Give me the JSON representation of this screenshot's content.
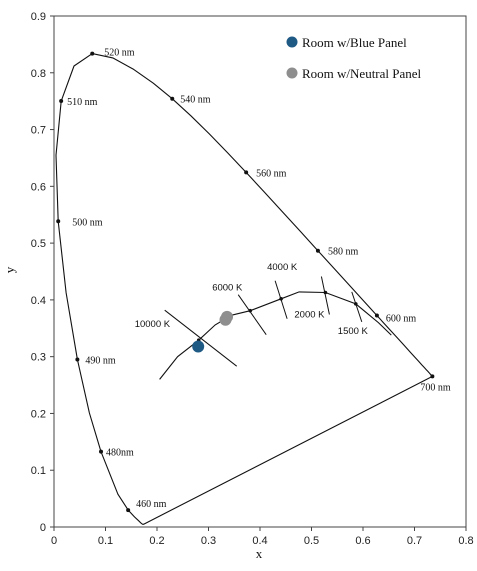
{
  "chart_data": {
    "type": "scatter",
    "xlabel": "x",
    "ylabel": "y",
    "xlim": [
      0,
      0.8
    ],
    "ylim": [
      0,
      0.9
    ],
    "x_ticks": [
      "0",
      "0.1",
      "0.2",
      "0.3",
      "0.4",
      "0.5",
      "0.6",
      "0.7",
      "0.8"
    ],
    "y_ticks": [
      "0",
      "0.1",
      "0.2",
      "0.3",
      "0.4",
      "0.5",
      "0.6",
      "0.7",
      "0.8",
      "0.9"
    ],
    "grid": false,
    "legend_position": "top-right",
    "spectral_locus": [
      [
        0.1741,
        0.005
      ],
      [
        0.1738,
        0.0049
      ],
      [
        0.1733,
        0.0048
      ],
      [
        0.1726,
        0.0048
      ],
      [
        0.1714,
        0.0051
      ],
      [
        0.1689,
        0.0069
      ],
      [
        0.1644,
        0.0109
      ],
      [
        0.1566,
        0.0177
      ],
      [
        0.144,
        0.0297
      ],
      [
        0.1241,
        0.0578
      ],
      [
        0.0913,
        0.1327
      ],
      [
        0.0687,
        0.2007
      ],
      [
        0.0454,
        0.295
      ],
      [
        0.0235,
        0.4127
      ],
      [
        0.0082,
        0.5384
      ],
      [
        0.0039,
        0.6548
      ],
      [
        0.0139,
        0.7502
      ],
      [
        0.0389,
        0.812
      ],
      [
        0.0743,
        0.8338
      ],
      [
        0.1142,
        0.8262
      ],
      [
        0.1547,
        0.8059
      ],
      [
        0.1929,
        0.7816
      ],
      [
        0.2296,
        0.7543
      ],
      [
        0.2658,
        0.7243
      ],
      [
        0.3016,
        0.6923
      ],
      [
        0.3373,
        0.6589
      ],
      [
        0.3731,
        0.6245
      ],
      [
        0.4087,
        0.5896
      ],
      [
        0.4441,
        0.5547
      ],
      [
        0.4788,
        0.5202
      ],
      [
        0.5125,
        0.4866
      ],
      [
        0.5448,
        0.4544
      ],
      [
        0.5752,
        0.4242
      ],
      [
        0.6029,
        0.3965
      ],
      [
        0.627,
        0.3725
      ],
      [
        0.6482,
        0.3514
      ],
      [
        0.6658,
        0.334
      ],
      [
        0.6801,
        0.3197
      ],
      [
        0.6915,
        0.3083
      ],
      [
        0.7006,
        0.2993
      ],
      [
        0.7079,
        0.292
      ],
      [
        0.714,
        0.2859
      ],
      [
        0.719,
        0.2809
      ],
      [
        0.723,
        0.277
      ],
      [
        0.726,
        0.274
      ],
      [
        0.7283,
        0.2717
      ],
      [
        0.73,
        0.27
      ],
      [
        0.7311,
        0.2689
      ],
      [
        0.732,
        0.268
      ],
      [
        0.7327,
        0.2673
      ],
      [
        0.7334,
        0.2666
      ],
      [
        0.734,
        0.266
      ],
      [
        0.7344,
        0.2656
      ],
      [
        0.7346,
        0.2654
      ],
      [
        0.7347,
        0.2653
      ]
    ],
    "wavelength_markers": [
      {
        "label": "460 nm",
        "x": 0.144,
        "y": 0.0297
      },
      {
        "label": "480nm",
        "x": 0.0913,
        "y": 0.1327
      },
      {
        "label": "490 nm",
        "x": 0.0454,
        "y": 0.295
      },
      {
        "label": "500 nm",
        "x": 0.0082,
        "y": 0.5384
      },
      {
        "label": "510 nm",
        "x": 0.0139,
        "y": 0.7502
      },
      {
        "label": "520 nm",
        "x": 0.0743,
        "y": 0.8338
      },
      {
        "label": "540 nm",
        "x": 0.2296,
        "y": 0.7543
      },
      {
        "label": "560 nm",
        "x": 0.3731,
        "y": 0.6245
      },
      {
        "label": "580 nm",
        "x": 0.5125,
        "y": 0.4866
      },
      {
        "label": "600 nm",
        "x": 0.627,
        "y": 0.3725
      },
      {
        "label": "700 nm",
        "x": 0.7347,
        "y": 0.2653
      }
    ],
    "planckian_locus": [
      [
        0.205,
        0.26
      ],
      [
        0.24,
        0.3
      ],
      [
        0.281,
        0.329
      ],
      [
        0.313,
        0.356
      ],
      [
        0.345,
        0.373
      ],
      [
        0.381,
        0.381
      ],
      [
        0.441,
        0.402
      ],
      [
        0.476,
        0.414
      ],
      [
        0.527,
        0.413
      ],
      [
        0.586,
        0.393
      ],
      [
        0.63,
        0.36
      ],
      [
        0.655,
        0.338
      ]
    ],
    "cct_markers": [
      {
        "label": "10000 K",
        "x": 0.281,
        "y": 0.329
      },
      {
        "label": "6000 K",
        "x": 0.381,
        "y": 0.381
      },
      {
        "label": "4000 K",
        "x": 0.441,
        "y": 0.402
      },
      {
        "label": "2000 K",
        "x": 0.527,
        "y": 0.413
      },
      {
        "label": "1500 K",
        "x": 0.586,
        "y": 0.393
      }
    ],
    "series": [
      {
        "name": "Room w/Blue Panel",
        "color": "#1f5a85",
        "points": [
          [
            0.28,
            0.318
          ]
        ]
      },
      {
        "name": "Room w/Neutral Panel",
        "color": "#8e8e8e",
        "points": [
          [
            0.333,
            0.365
          ],
          [
            0.336,
            0.37
          ]
        ]
      }
    ]
  }
}
